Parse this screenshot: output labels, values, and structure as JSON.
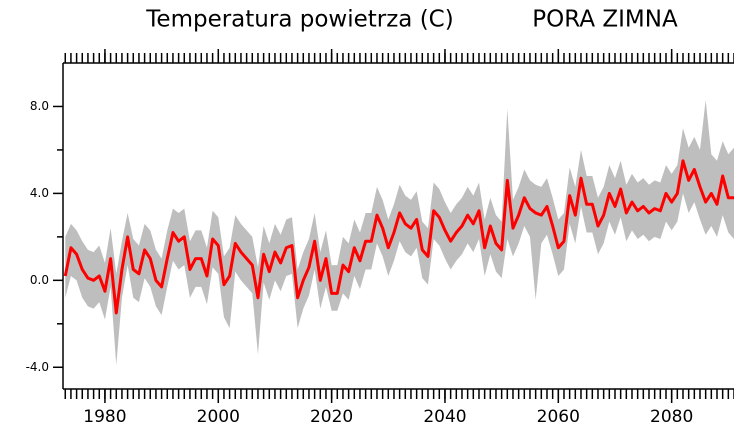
{
  "chart_data": {
    "type": "band_line",
    "title": "Temperatura powietrza (C)",
    "subtitle": "PORA ZIMNA",
    "x": [
      1973,
      1974,
      1975,
      1976,
      1977,
      1978,
      1979,
      1980,
      1981,
      1982,
      1983,
      1984,
      1985,
      1986,
      1987,
      1988,
      1989,
      1990,
      1991,
      1992,
      1993,
      1994,
      1995,
      1996,
      1997,
      1998,
      1999,
      2000,
      2001,
      2002,
      2003,
      2004,
      2005,
      2006,
      2007,
      2008,
      2009,
      2010,
      2011,
      2012,
      2013,
      2014,
      2015,
      2016,
      2017,
      2018,
      2019,
      2020,
      2021,
      2022,
      2023,
      2024,
      2025,
      2026,
      2027,
      2028,
      2029,
      2030,
      2031,
      2032,
      2033,
      2034,
      2035,
      2036,
      2037,
      2038,
      2039,
      2040,
      2041,
      2042,
      2043,
      2044,
      2045,
      2046,
      2047,
      2048,
      2049,
      2050,
      2051,
      2052,
      2053,
      2054,
      2055,
      2056,
      2057,
      2058,
      2059,
      2060,
      2061,
      2062,
      2063,
      2064,
      2065,
      2066,
      2067,
      2068,
      2069,
      2070,
      2071,
      2072,
      2073,
      2074,
      2075,
      2076,
      2077,
      2078,
      2079,
      2080,
      2081,
      2082,
      2083,
      2084,
      2085,
      2086,
      2087,
      2088,
      2089,
      2090,
      2091
    ],
    "values": [
      0.2,
      1.5,
      1.2,
      0.5,
      0.1,
      0.0,
      0.2,
      -0.5,
      1.0,
      -1.5,
      0.5,
      2.0,
      0.5,
      0.3,
      1.4,
      1.0,
      0.0,
      -0.3,
      1.0,
      2.2,
      1.8,
      2.0,
      0.5,
      1.0,
      1.0,
      0.2,
      1.9,
      1.6,
      -0.2,
      0.2,
      1.7,
      1.3,
      1.0,
      0.7,
      -0.8,
      1.2,
      0.4,
      1.3,
      0.8,
      1.5,
      1.6,
      -0.8,
      0.0,
      0.6,
      1.8,
      0.0,
      1.0,
      -0.6,
      -0.6,
      0.7,
      0.4,
      1.5,
      0.9,
      1.8,
      1.8,
      3.0,
      2.4,
      1.5,
      2.2,
      3.1,
      2.6,
      2.4,
      2.8,
      1.4,
      1.1,
      3.2,
      2.9,
      2.3,
      1.8,
      2.2,
      2.5,
      3.0,
      2.6,
      3.2,
      1.5,
      2.5,
      1.7,
      1.4,
      4.6,
      2.4,
      3.0,
      3.8,
      3.3,
      3.1,
      3.0,
      3.4,
      2.5,
      1.5,
      1.8,
      3.9,
      3.0,
      4.7,
      3.5,
      3.5,
      2.5,
      3.0,
      4.0,
      3.4,
      4.2,
      3.1,
      3.6,
      3.2,
      3.4,
      3.1,
      3.3,
      3.2,
      4.0,
      3.6,
      4.0,
      5.5,
      4.6,
      5.1,
      4.3,
      3.6,
      4.0,
      3.5,
      4.8,
      3.8,
      3.8
    ],
    "low": [
      -0.8,
      0.2,
      0.0,
      -0.8,
      -1.2,
      -1.3,
      -1.0,
      -1.8,
      -0.3,
      -3.9,
      -0.8,
      0.7,
      -0.8,
      -1.0,
      0.1,
      -0.3,
      -1.2,
      -1.6,
      -0.3,
      0.9,
      0.5,
      0.7,
      -0.8,
      -0.3,
      -0.3,
      -1.1,
      0.6,
      0.3,
      -1.7,
      -2.2,
      0.4,
      0.0,
      -0.3,
      -0.6,
      -3.4,
      -0.1,
      -0.9,
      0.0,
      -0.5,
      0.2,
      0.3,
      -2.2,
      -1.3,
      -0.7,
      0.5,
      -1.3,
      -0.3,
      -1.4,
      -1.4,
      -0.6,
      -0.9,
      0.2,
      -0.4,
      0.5,
      0.5,
      1.7,
      1.1,
      0.2,
      0.9,
      1.8,
      1.3,
      1.1,
      1.5,
      0.1,
      -0.2,
      1.9,
      1.6,
      1.0,
      0.5,
      0.9,
      1.2,
      1.7,
      1.3,
      1.9,
      0.2,
      1.2,
      0.4,
      0.1,
      1.9,
      1.1,
      1.7,
      2.5,
      2.0,
      -0.9,
      1.7,
      2.1,
      1.2,
      0.2,
      0.5,
      2.6,
      1.7,
      3.4,
      2.2,
      2.2,
      1.2,
      1.7,
      2.7,
      2.1,
      2.9,
      1.8,
      2.3,
      1.9,
      2.1,
      1.8,
      2.0,
      1.9,
      2.7,
      2.3,
      2.7,
      4.0,
      3.1,
      3.6,
      2.8,
      2.1,
      2.5,
      2.0,
      3.0,
      2.2,
      1.9
    ],
    "high": [
      2.0,
      2.6,
      2.3,
      1.8,
      1.4,
      1.3,
      1.6,
      0.8,
      2.4,
      0.3,
      1.8,
      3.1,
      1.9,
      1.6,
      2.6,
      2.3,
      1.4,
      1.0,
      2.3,
      3.3,
      3.1,
      3.3,
      1.8,
      2.3,
      2.3,
      1.5,
      3.2,
      2.9,
      1.1,
      1.5,
      3.0,
      2.6,
      2.3,
      2.0,
      0.6,
      2.5,
      1.7,
      2.6,
      2.1,
      2.8,
      2.9,
      0.5,
      1.3,
      1.9,
      3.1,
      1.3,
      2.3,
      0.7,
      0.7,
      2.0,
      1.7,
      2.8,
      2.2,
      3.1,
      3.1,
      4.3,
      3.7,
      2.8,
      3.5,
      4.4,
      3.9,
      3.7,
      4.1,
      2.7,
      2.4,
      4.5,
      4.2,
      3.6,
      3.1,
      3.5,
      3.8,
      4.3,
      3.9,
      4.5,
      2.8,
      3.8,
      3.0,
      2.7,
      7.9,
      3.7,
      4.3,
      5.1,
      4.6,
      4.4,
      4.3,
      4.7,
      3.8,
      2.8,
      3.1,
      5.2,
      4.3,
      6.0,
      4.8,
      4.8,
      3.8,
      4.3,
      5.3,
      4.7,
      5.5,
      4.4,
      4.9,
      4.5,
      4.7,
      4.4,
      4.6,
      4.5,
      5.3,
      4.9,
      5.3,
      7.0,
      6.1,
      6.6,
      6.0,
      8.3,
      5.8,
      5.5,
      6.4,
      5.8,
      6.1
    ],
    "color": "#ff0000",
    "band_color": "#bebebe",
    "xlim": [
      1972.6,
      2091
    ],
    "xticks": [
      1980,
      2000,
      2020,
      2040,
      2060,
      2080
    ],
    "ylim": [
      -5,
      10
    ],
    "yticks": [
      {
        "value": 8,
        "label": "8.0"
      },
      {
        "value": 4,
        "label": "4.0"
      },
      {
        "value": 0,
        "label": "0.0"
      },
      {
        "value": -4,
        "label": "-4.0"
      }
    ],
    "yminor": [
      6,
      2,
      -2
    ]
  }
}
